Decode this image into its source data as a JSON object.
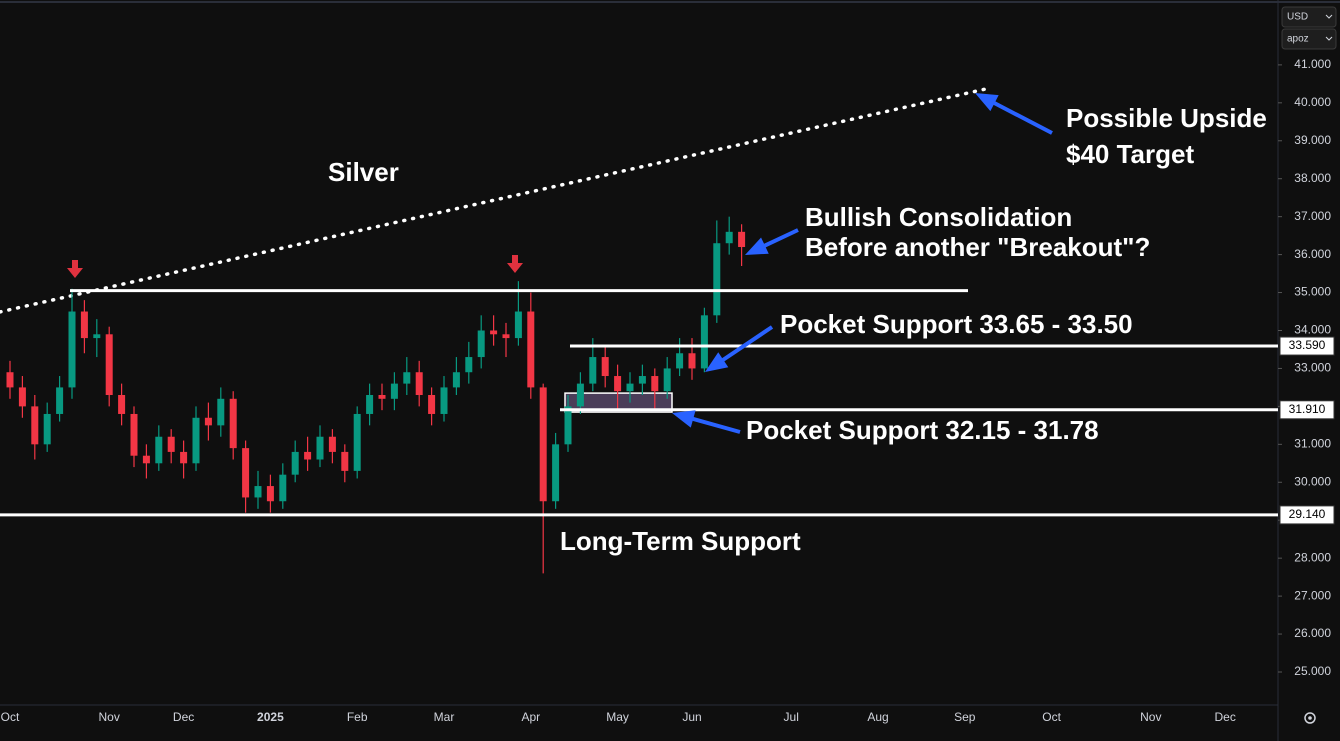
{
  "currency": "USD",
  "unit": "apoz",
  "chart_data": {
    "type": "candlestick",
    "up_color": "#089981",
    "down_color": "#f23645",
    "grid": false,
    "categories": [
      "Oct",
      null,
      null,
      null,
      null,
      null,
      null,
      null,
      "Nov",
      null,
      null,
      null,
      null,
      null,
      "Dec",
      null,
      null,
      null,
      null,
      null,
      null,
      "2025",
      null,
      null,
      null,
      null,
      null,
      null,
      "Feb",
      null,
      null,
      null,
      null,
      null,
      null,
      "Mar",
      null,
      null,
      null,
      null,
      null,
      null,
      "Apr",
      null,
      null,
      null,
      null,
      null,
      null,
      "May",
      null,
      null,
      null,
      null,
      null,
      "Jun",
      null,
      null,
      null,
      null,
      null,
      null,
      null,
      "Jul",
      null,
      null,
      null,
      null,
      null,
      null,
      "Aug",
      null,
      null,
      null,
      null,
      null,
      null,
      "Sep",
      null,
      null,
      null,
      null,
      null,
      null,
      "Oct",
      null,
      null,
      null,
      null,
      null,
      null,
      null,
      "Nov",
      null,
      null,
      null,
      null,
      null,
      "Dec",
      null,
      null,
      null
    ],
    "open": [
      32.9,
      32.5,
      32.0,
      31.0,
      31.8,
      32.5,
      34.5,
      33.8,
      33.9,
      32.3,
      31.8,
      30.7,
      30.5,
      31.2,
      30.8,
      30.5,
      31.7,
      31.5,
      32.2,
      30.9,
      29.6,
      29.9,
      29.5,
      30.2,
      30.8,
      30.6,
      31.2,
      30.8,
      30.3,
      31.8,
      32.3,
      32.2,
      32.6,
      32.9,
      32.3,
      31.8,
      32.5,
      32.9,
      33.3,
      34.0,
      33.9,
      33.8,
      34.5,
      32.5,
      29.5,
      31.0,
      32.0,
      32.6,
      33.3,
      32.8,
      32.4,
      32.6,
      32.8,
      32.4,
      33.0,
      33.4,
      33.0,
      34.4,
      36.3,
      36.6,
      null,
      null,
      null,
      null,
      null,
      null,
      null,
      null,
      null,
      null,
      null,
      null,
      null,
      null,
      null,
      null,
      null,
      null,
      null,
      null,
      null,
      null,
      null,
      null,
      null,
      null,
      null,
      null,
      null,
      null,
      null,
      null,
      null,
      null,
      null,
      null,
      null,
      null,
      null,
      null,
      null,
      null
    ],
    "high": [
      33.2,
      32.8,
      32.3,
      32.1,
      32.8,
      35.1,
      34.8,
      34.3,
      34.1,
      32.6,
      32.0,
      31.0,
      31.5,
      31.4,
      31.1,
      32.0,
      32.1,
      32.5,
      32.4,
      31.1,
      30.3,
      30.2,
      30.5,
      31.1,
      31.2,
      31.5,
      31.4,
      31.0,
      32.0,
      32.6,
      32.6,
      32.9,
      33.3,
      33.2,
      32.5,
      32.8,
      33.3,
      33.7,
      34.4,
      34.4,
      34.2,
      35.3,
      35.0,
      32.6,
      31.3,
      32.3,
      32.9,
      33.8,
      33.6,
      33.1,
      32.9,
      33.1,
      33.0,
      33.3,
      33.8,
      33.8,
      34.6,
      36.9,
      37.0,
      36.8,
      null,
      null,
      null,
      null,
      null,
      null,
      null,
      null,
      null,
      null,
      null,
      null,
      null,
      null,
      null,
      null,
      null,
      null,
      null,
      null,
      null,
      null,
      null,
      null,
      null,
      null,
      null,
      null,
      null,
      null,
      null,
      null,
      null,
      null,
      null,
      null,
      null,
      null,
      null,
      null,
      null,
      null
    ],
    "low": [
      32.2,
      31.7,
      30.6,
      30.8,
      31.6,
      32.2,
      33.4,
      33.3,
      32.0,
      31.5,
      30.4,
      30.1,
      30.3,
      30.5,
      30.1,
      30.3,
      31.1,
      31.2,
      30.6,
      29.2,
      29.3,
      29.2,
      29.3,
      30.0,
      30.3,
      30.4,
      30.5,
      30.0,
      30.1,
      31.5,
      31.9,
      31.9,
      32.3,
      32.0,
      31.5,
      31.6,
      32.3,
      32.6,
      33.0,
      33.6,
      33.3,
      33.6,
      32.2,
      27.6,
      29.3,
      30.8,
      31.8,
      32.4,
      32.5,
      31.9,
      32.1,
      32.3,
      31.9,
      32.2,
      32.8,
      32.7,
      32.9,
      34.2,
      36.0,
      35.7,
      null,
      null,
      null,
      null,
      null,
      null,
      null,
      null,
      null,
      null,
      null,
      null,
      null,
      null,
      null,
      null,
      null,
      null,
      null,
      null,
      null,
      null,
      null,
      null,
      null,
      null,
      null,
      null,
      null,
      null,
      null,
      null,
      null,
      null,
      null,
      null,
      null,
      null,
      null,
      null,
      null,
      null
    ],
    "close": [
      32.5,
      32.0,
      31.0,
      31.8,
      32.5,
      34.5,
      33.8,
      33.9,
      32.3,
      31.8,
      30.7,
      30.5,
      31.2,
      30.8,
      30.5,
      31.7,
      31.5,
      32.2,
      30.9,
      29.6,
      29.9,
      29.5,
      30.2,
      30.8,
      30.6,
      31.2,
      30.8,
      30.3,
      31.8,
      32.3,
      32.2,
      32.6,
      32.9,
      32.3,
      31.8,
      32.5,
      32.9,
      33.3,
      34.0,
      33.9,
      33.8,
      34.5,
      32.5,
      29.5,
      31.0,
      32.0,
      32.6,
      33.3,
      32.8,
      32.4,
      32.6,
      32.8,
      32.4,
      33.0,
      33.4,
      33.0,
      34.4,
      36.3,
      36.6,
      36.2,
      null,
      null,
      null,
      null,
      null,
      null,
      null,
      null,
      null,
      null,
      null,
      null,
      null,
      null,
      null,
      null,
      null,
      null,
      null,
      null,
      null,
      null,
      null,
      null,
      null,
      null,
      null,
      null,
      null,
      null,
      null,
      null,
      null,
      null,
      null,
      null,
      null,
      null,
      null,
      null,
      null,
      null
    ],
    "ylim": [
      24.13,
      42.71
    ],
    "yticks": [
      {
        "value": 25,
        "label": "25.000"
      },
      {
        "value": 26,
        "label": "26.000"
      },
      {
        "value": 27,
        "label": "27.000"
      },
      {
        "value": 28,
        "label": "28.000"
      },
      {
        "value": 29,
        "label": "29.000"
      },
      {
        "value": 30,
        "label": "30.000"
      },
      {
        "value": 31,
        "label": "31.000"
      },
      {
        "value": 32,
        "label": "32.000"
      },
      {
        "value": 33,
        "label": "33.000"
      },
      {
        "value": 34,
        "label": "34.000"
      },
      {
        "value": 35,
        "label": "35.000"
      },
      {
        "value": 36,
        "label": "36.000"
      },
      {
        "value": 37,
        "label": "37.000"
      },
      {
        "value": 38,
        "label": "38.000"
      },
      {
        "value": 39,
        "label": "39.000"
      },
      {
        "value": 40,
        "label": "40.000"
      },
      {
        "value": 41,
        "label": "41.000"
      }
    ],
    "levels": [
      {
        "value": 35.05
      },
      {
        "value": 33.59,
        "label": "33.590"
      },
      {
        "value": 31.91,
        "label": "31.910"
      },
      {
        "value": 29.14,
        "label": "29.140"
      }
    ],
    "trendline": [
      34.49,
      40.39
    ],
    "zone": [
      31.85,
      32.35
    ],
    "annotations": [
      [
        "Silver"
      ],
      [
        "Possible Upside",
        "$40 Target"
      ],
      [
        "Bullish Consolidation",
        "Before another \"Breakout\"?"
      ],
      [
        "Pocket Support 33.65 - 33.50"
      ],
      [
        "Pocket Support 32.15 - 31.78"
      ],
      [
        "Long-Term Support"
      ]
    ]
  }
}
